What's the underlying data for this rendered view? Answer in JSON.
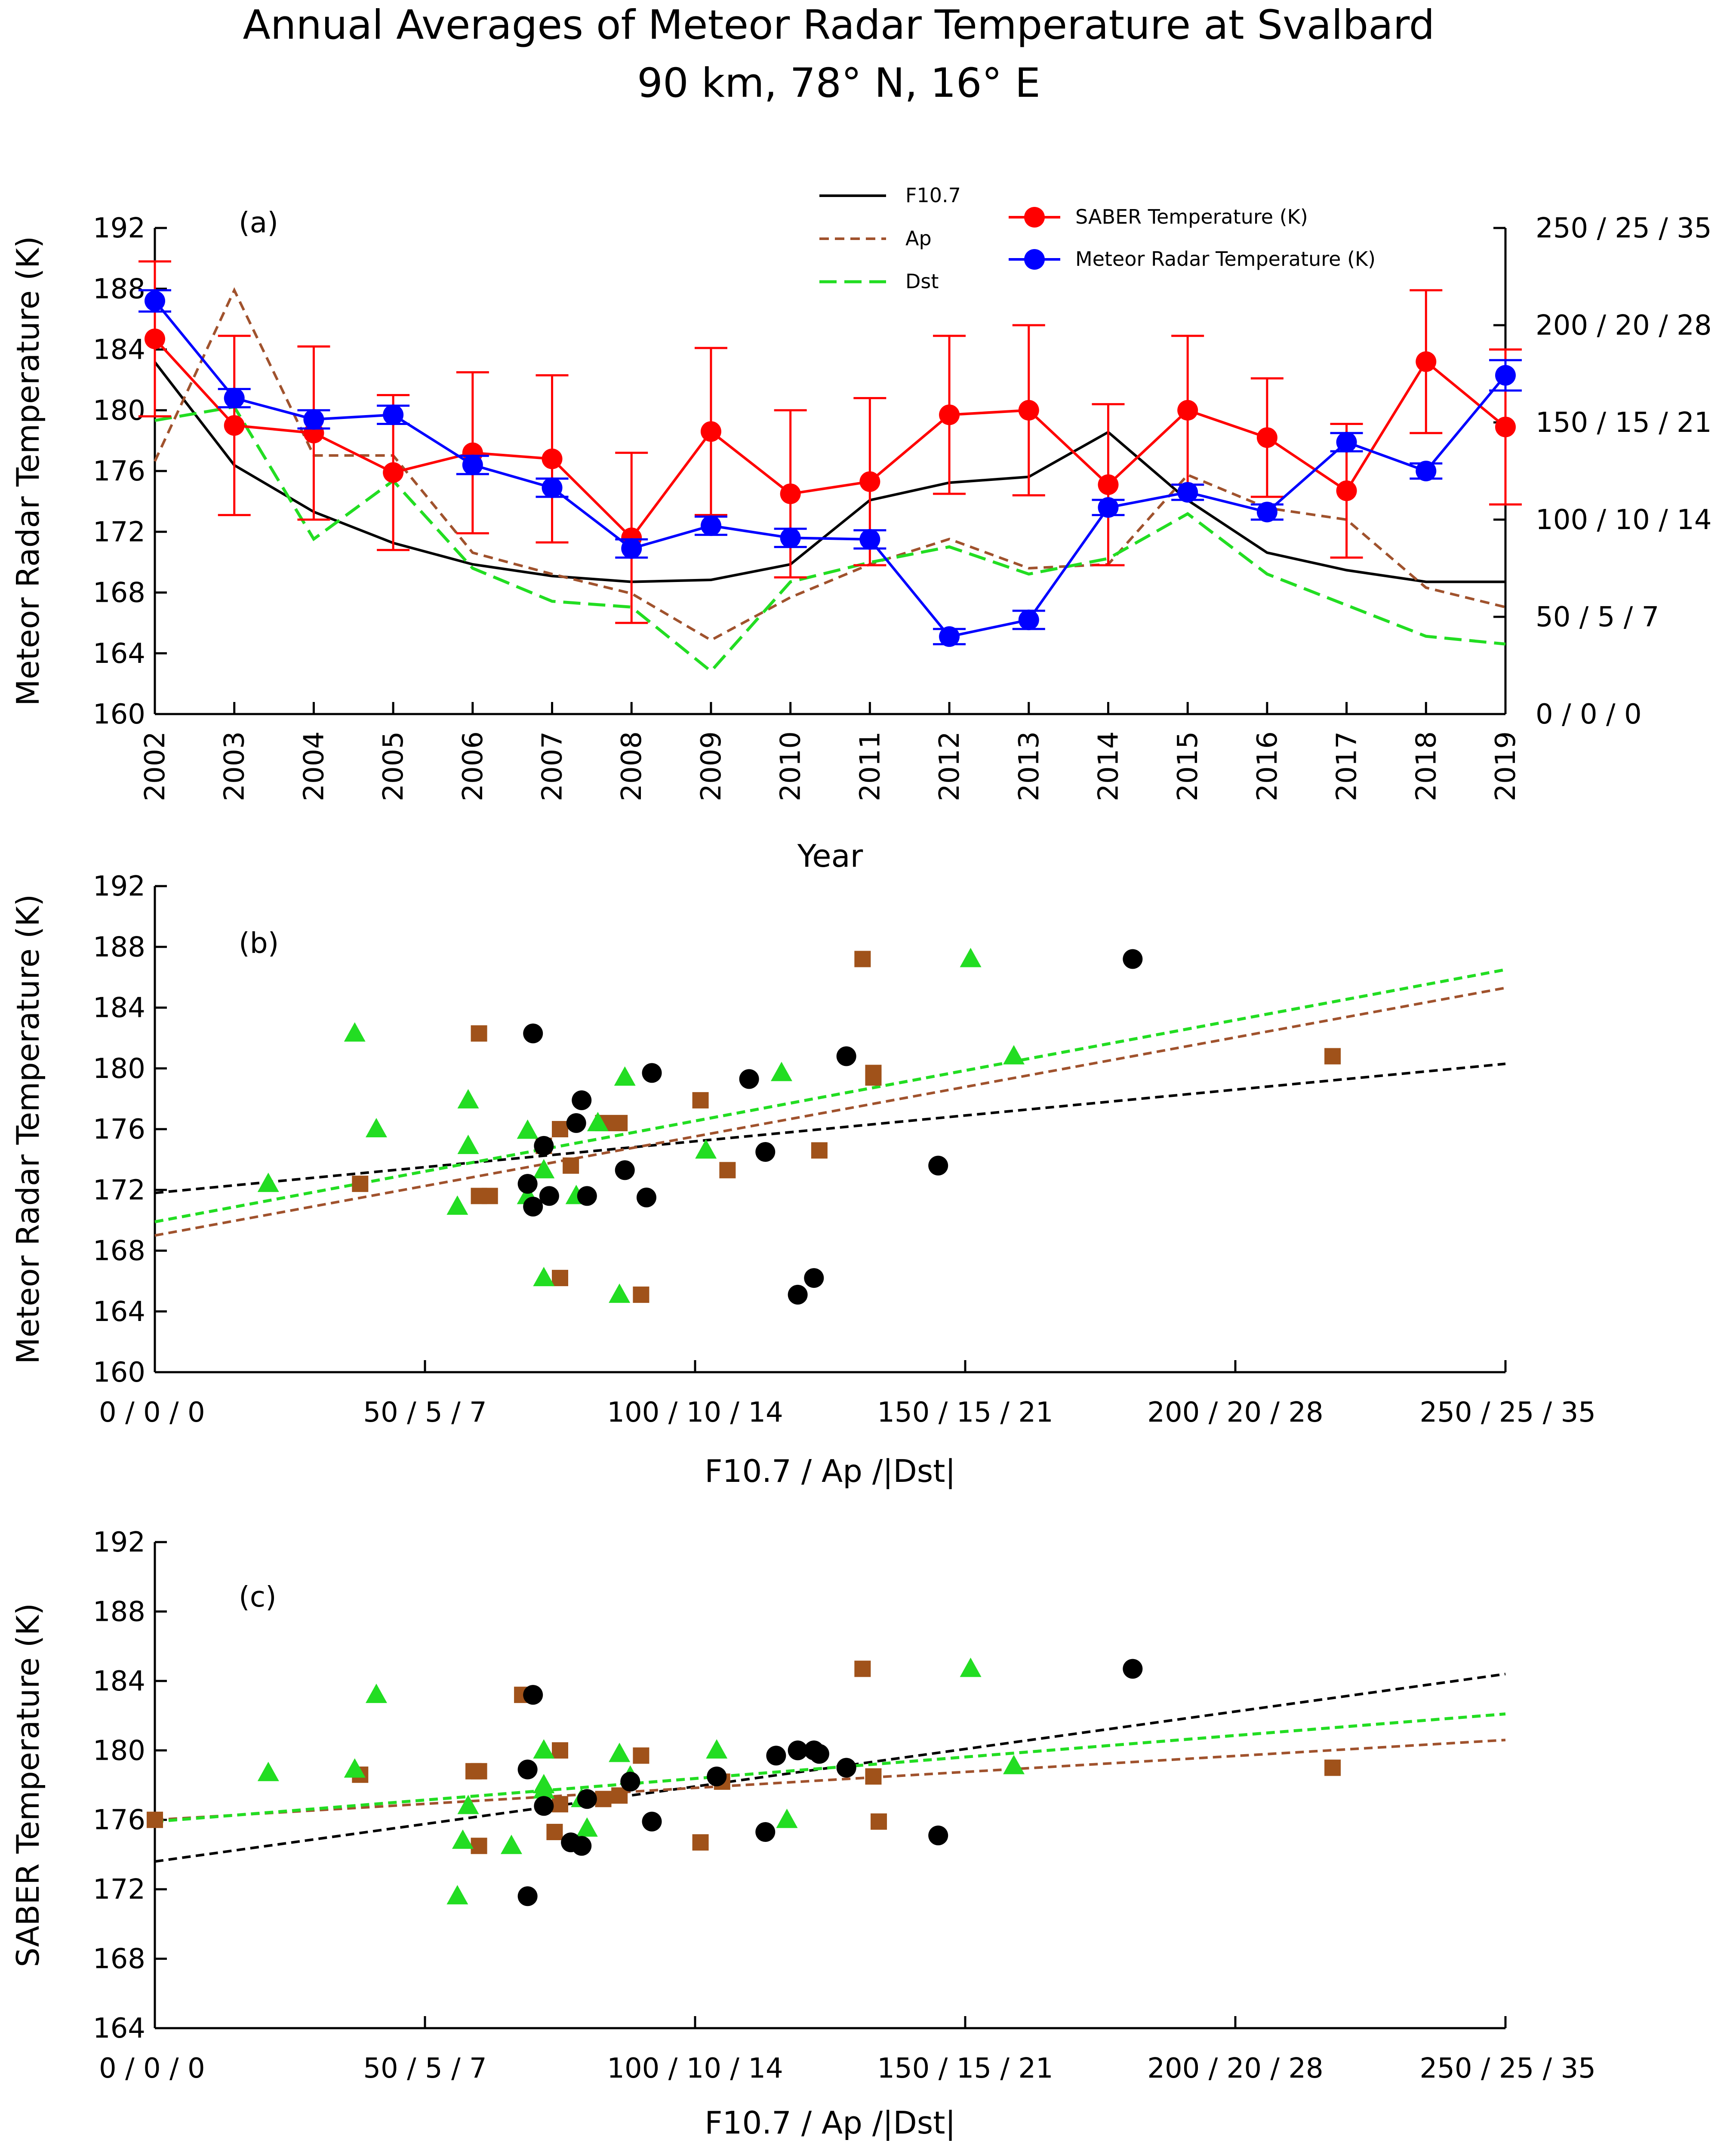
{
  "figure": {
    "title_line1": "Annual Averages of Meteor Radar Temperature at Svalbard",
    "title_line2": "90 km, 78° N, 16° E"
  },
  "colors": {
    "f107": "#000000",
    "ap": "#a0522d",
    "dst": "#22dd22",
    "saber": "#ff0000",
    "meteor": "#0000ff",
    "ap_marker": "#a0521a",
    "dst_marker": "#22dd22"
  },
  "chart_data": [
    {
      "id": "a",
      "type": "line",
      "panel_label": "(a)",
      "xlabel": "Year",
      "ylabel": "Meteor Radar Temperature (K)",
      "ylim": [
        160,
        192
      ],
      "yticks": [
        "160",
        "164",
        "168",
        "172",
        "176",
        "180",
        "184",
        "188",
        "192"
      ],
      "right_ylim": [
        0,
        250
      ],
      "right_yticks": [
        "0 / 0 / 0",
        "50 / 5 / 7",
        "100 / 10 / 14",
        "150 / 15 / 21",
        "200 / 20 / 28",
        "250 / 25 / 35"
      ],
      "x": [
        "2002",
        "2003",
        "2004",
        "2005",
        "2006",
        "2007",
        "2008",
        "2009",
        "2010",
        "2011",
        "2012",
        "2013",
        "2014",
        "2015",
        "2016",
        "2017",
        "2018",
        "2019"
      ],
      "series": [
        {
          "name": "SABER Temperature (K)",
          "axis": "left",
          "style": "line-dot",
          "color_key": "saber",
          "values": [
            184.7,
            179.0,
            178.5,
            175.9,
            177.2,
            176.8,
            171.6,
            178.6,
            174.5,
            175.3,
            179.7,
            180.0,
            175.1,
            180.0,
            178.2,
            174.7,
            183.2,
            178.9
          ],
          "errors": [
            5.1,
            5.9,
            5.7,
            5.1,
            5.3,
            5.5,
            5.6,
            5.5,
            5.5,
            5.5,
            5.2,
            5.6,
            5.3,
            4.9,
            3.9,
            4.4,
            4.7,
            5.1
          ]
        },
        {
          "name": "Meteor Radar Temperature (K)",
          "axis": "left",
          "style": "line-dot",
          "color_key": "meteor",
          "values": [
            187.2,
            180.8,
            179.4,
            179.7,
            176.4,
            174.9,
            170.9,
            172.4,
            171.6,
            171.5,
            165.1,
            166.2,
            173.6,
            174.6,
            173.3,
            177.9,
            176.0,
            182.3
          ],
          "errors": [
            0.7,
            0.6,
            0.6,
            0.6,
            0.6,
            0.6,
            0.6,
            0.6,
            0.6,
            0.6,
            0.5,
            0.6,
            0.5,
            0.5,
            0.5,
            0.6,
            0.5,
            1.0
          ]
        },
        {
          "name": "F10.7",
          "axis": "right",
          "style": "solid",
          "color_key": "f107",
          "values": [
            181,
            128,
            104,
            88,
            77,
            71,
            68,
            69,
            77,
            110,
            119,
            122,
            145,
            110,
            83,
            74,
            68,
            68
          ]
        },
        {
          "name": "Ap",
          "axis": "right",
          "style": "dash",
          "color_key": "ap",
          "values": [
            130,
            218,
            133,
            133,
            83,
            72,
            62,
            38,
            60,
            77,
            90,
            75,
            77,
            123,
            106,
            100,
            65,
            55
          ]
        },
        {
          "name": "Dst",
          "axis": "right",
          "style": "longdash",
          "color_key": "dst",
          "values": [
            151,
            158,
            90,
            120,
            75,
            58,
            55,
            22,
            68,
            78,
            86,
            72,
            80,
            103,
            72,
            56,
            40,
            36
          ]
        }
      ]
    },
    {
      "id": "b",
      "type": "scatter",
      "panel_label": "(b)",
      "xlabel": "F10.7 / Ap /|Dst|",
      "ylabel": "Meteor Radar Temperature (K)",
      "xlim": [
        0,
        250
      ],
      "xticks": [
        "0 / 0 / 0",
        "50 / 5 / 7",
        "100 / 10 / 14",
        "150 / 15 / 21",
        "200 / 20 / 28",
        "250 / 25 / 35"
      ],
      "ylim": [
        160,
        192
      ],
      "yticks": [
        "160",
        "164",
        "168",
        "172",
        "176",
        "180",
        "184",
        "188",
        "192"
      ],
      "series": [
        {
          "name": "F10.7",
          "marker": "circle",
          "color_key": "f107",
          "x": [
            181,
            128,
            92,
            78,
            72,
            70,
            69,
            73,
            91,
            87,
            79,
            80,
            113,
            122,
            119,
            145,
            110,
            70
          ],
          "y": [
            187.2,
            180.8,
            179.7,
            176.4,
            174.9,
            170.9,
            172.4,
            171.6,
            171.5,
            173.3,
            177.9,
            171.6,
            174.5,
            166.2,
            165.1,
            173.6,
            179.3,
            182.3
          ]
        },
        {
          "name": "Ap",
          "marker": "square",
          "color_key": "ap",
          "x": [
            131,
            218,
            133,
            133,
            83,
            72,
            62,
            38,
            60,
            101,
            90,
            75,
            77,
            123,
            106,
            60,
            86,
            75
          ],
          "y": [
            187.2,
            180.8,
            179.4,
            179.7,
            176.4,
            174.9,
            171.6,
            172.4,
            171.6,
            177.9,
            165.1,
            166.2,
            173.6,
            174.6,
            173.3,
            182.3,
            176.4,
            176.0
          ]
        },
        {
          "name": "Dst",
          "marker": "triangle",
          "color_key": "dst",
          "x": [
            151,
            159,
            87,
            116,
            58,
            58,
            56,
            21,
            37,
            41,
            72,
            72,
            78,
            69,
            86,
            102,
            82,
            69
          ],
          "y": [
            187.2,
            180.8,
            179.4,
            179.7,
            177.9,
            174.9,
            170.9,
            172.4,
            182.3,
            176.0,
            173.3,
            166.2,
            171.6,
            171.6,
            165.1,
            174.6,
            176.4,
            175.9
          ]
        }
      ],
      "fits": [
        {
          "name": "F10.7 fit",
          "color_key": "f107",
          "x": [
            0,
            250
          ],
          "y": [
            171.8,
            180.3
          ]
        },
        {
          "name": "Ap fit",
          "color_key": "ap",
          "x": [
            0,
            250
          ],
          "y": [
            169.0,
            185.3
          ]
        },
        {
          "name": "Dst fit",
          "color_key": "dst",
          "x": [
            0,
            250
          ],
          "y": [
            169.9,
            186.5
          ]
        }
      ]
    },
    {
      "id": "c",
      "type": "scatter",
      "panel_label": "(c)",
      "xlabel": "F10.7 / Ap /|Dst|",
      "ylabel": "SABER Temperature (K)",
      "xlim": [
        0,
        250
      ],
      "xticks": [
        "0 / 0 / 0",
        "50 / 5 / 7",
        "100 / 10 / 14",
        "150 / 15 / 21",
        "200 / 20 / 28",
        "250 / 25 / 35"
      ],
      "ylim": [
        164,
        192
      ],
      "yticks": [
        "164",
        "168",
        "172",
        "176",
        "180",
        "184",
        "188",
        "192"
      ],
      "series": [
        {
          "name": "F10.7",
          "marker": "circle",
          "color_key": "f107",
          "x": [
            181,
            128,
            119,
            122,
            115,
            70,
            69,
            72,
            77,
            79,
            80,
            88,
            92,
            104,
            113,
            145,
            69,
            123
          ],
          "y": [
            184.7,
            179.0,
            180.0,
            180.0,
            179.7,
            183.2,
            178.9,
            176.8,
            174.7,
            174.5,
            177.2,
            178.2,
            175.9,
            178.5,
            175.3,
            175.1,
            171.6,
            179.8
          ]
        },
        {
          "name": "Ap",
          "marker": "square",
          "color_key": "ap",
          "x": [
            131,
            218,
            133,
            134,
            68,
            60,
            59,
            38,
            74,
            75,
            90,
            83,
            101,
            105,
            60,
            0,
            75,
            86
          ],
          "y": [
            184.7,
            179.0,
            178.5,
            175.9,
            183.2,
            174.5,
            178.8,
            178.6,
            175.3,
            176.9,
            179.7,
            177.2,
            174.7,
            178.2,
            178.8,
            176.0,
            180.0,
            177.4
          ]
        },
        {
          "name": "Dst",
          "marker": "triangle",
          "color_key": "dst",
          "x": [
            151,
            159,
            41,
            37,
            21,
            57,
            58,
            66,
            72,
            72,
            80,
            86,
            88,
            104,
            117,
            56,
            79,
            72
          ],
          "y": [
            184.7,
            179.1,
            183.2,
            178.9,
            178.7,
            174.8,
            176.8,
            174.5,
            180.0,
            178.0,
            175.5,
            179.8,
            178.5,
            180.0,
            176.0,
            171.6,
            177.2,
            177.7
          ]
        }
      ],
      "fits": [
        {
          "name": "F10.7 fit",
          "color_key": "f107",
          "x": [
            0,
            250
          ],
          "y": [
            173.6,
            184.4
          ]
        },
        {
          "name": "Ap fit",
          "color_key": "ap",
          "x": [
            0,
            250
          ],
          "y": [
            176.0,
            180.6
          ]
        },
        {
          "name": "Dst fit",
          "color_key": "dst",
          "x": [
            0,
            250
          ],
          "y": [
            175.9,
            182.1
          ]
        }
      ]
    }
  ]
}
